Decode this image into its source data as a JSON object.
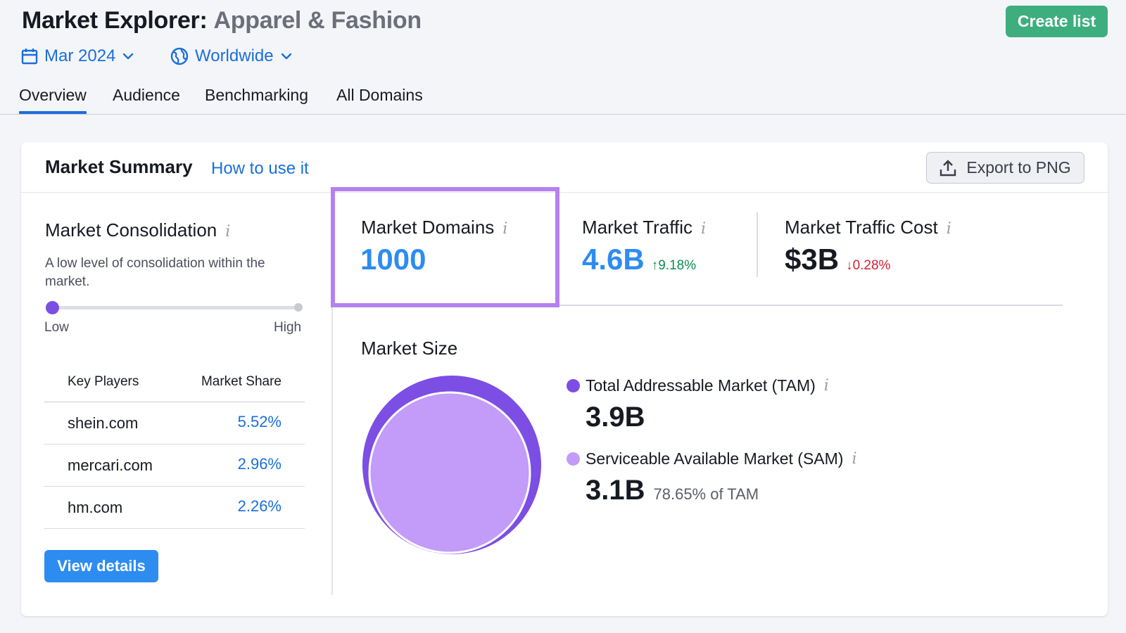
{
  "header": {
    "title": "Market Explorer:",
    "subtitle": "Apparel & Fashion",
    "create_list_label": "Create list"
  },
  "filters": {
    "date": "Mar 2024",
    "region": "Worldwide"
  },
  "tabs": [
    {
      "label": "Overview",
      "active": true
    },
    {
      "label": "Audience",
      "active": false
    },
    {
      "label": "Benchmarking",
      "active": false
    },
    {
      "label": "All Domains",
      "active": false
    }
  ],
  "summary": {
    "title": "Market Summary",
    "how_to_label": "How to use it",
    "export_label": "Export to PNG"
  },
  "consolidation": {
    "title": "Market Consolidation",
    "description": "A low level of consolidation within the market.",
    "level": 0.0,
    "low_label": "Low",
    "high_label": "High"
  },
  "key_players": {
    "col_player": "Key Players",
    "col_share": "Market Share",
    "rows": [
      {
        "domain": "shein.com",
        "share": "5.52%"
      },
      {
        "domain": "mercari.com",
        "share": "2.96%"
      },
      {
        "domain": "hm.com",
        "share": "2.26%"
      }
    ],
    "view_details_label": "View details"
  },
  "metrics": {
    "domains": {
      "label": "Market Domains",
      "value": "1000"
    },
    "traffic": {
      "label": "Market Traffic",
      "value": "4.6B",
      "delta": "9.18%",
      "direction": "up"
    },
    "traffic_cost": {
      "label": "Market Traffic Cost",
      "value": "$3B",
      "delta": "0.28%",
      "direction": "down"
    }
  },
  "market_size": {
    "title": "Market Size",
    "tam": {
      "label": "Total Addressable Market (TAM)",
      "value": "3.9B",
      "color": "#7c4ee4"
    },
    "sam": {
      "label": "Serviceable Available Market (SAM)",
      "value": "3.1B",
      "note": "78.65% of TAM",
      "color": "#c39bf8"
    }
  },
  "colors": {
    "accent_blue": "#1a6fd8",
    "create_green": "#3eae7f",
    "highlight_purple": "#b581f0",
    "up_green": "#0a8f52",
    "down_red": "#d42034"
  }
}
